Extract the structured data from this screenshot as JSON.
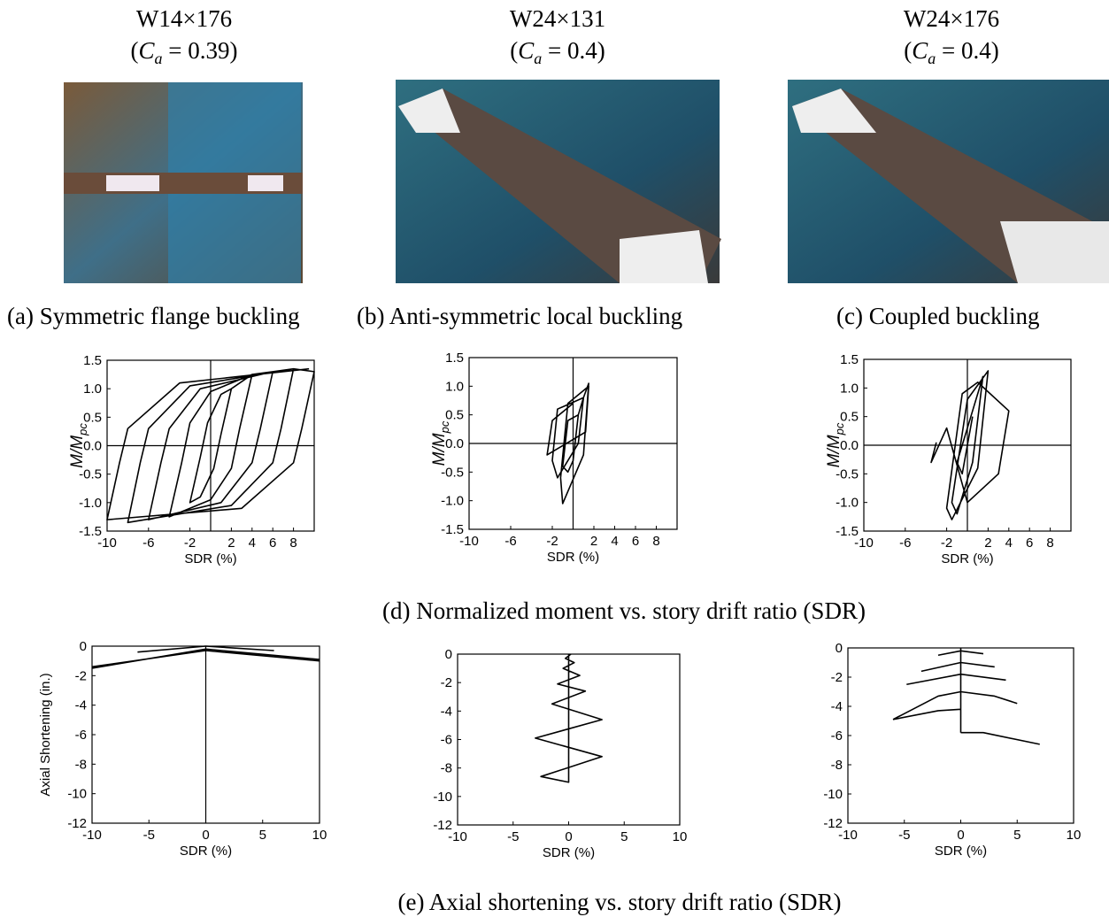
{
  "panels": [
    {
      "section": "W14×176",
      "open": "(",
      "symbol": "C",
      "sub": "a",
      "rest": " = 0.39)",
      "caption": "(a) Symmetric flange buckling"
    },
    {
      "section": "W24×131",
      "open": "(",
      "symbol": "C",
      "sub": "a",
      "rest": " = 0.4)",
      "caption": "(b) Anti-symmetric local buckling"
    },
    {
      "section": "W24×176",
      "open": "(",
      "symbol": "C",
      "sub": "a",
      "rest": " = 0.4)",
      "caption": "(c) Coupled buckling"
    }
  ],
  "captions": {
    "moment": "(d) Normalized moment vs. story drift ratio (SDR)",
    "axial": "(e) Axial shortening vs. story drift ratio (SDR)"
  },
  "chart_data": [
    {
      "type": "line",
      "xlabel": "SDR (%)",
      "ylabel": {
        "main": "M/M",
        "sub": "pc"
      },
      "color": "#000000",
      "xlim": [
        -10,
        10
      ],
      "ylim": [
        -1.5,
        1.5
      ],
      "xticks": [
        -10,
        -6,
        -2,
        2,
        4,
        6,
        8
      ],
      "yticks": [
        1.5,
        {
          "value": 1,
          "label": "1.0"
        },
        0.5,
        {
          "value": 0,
          "label": "0.0"
        },
        -0.5,
        {
          "value": -1,
          "label": "-1.0"
        },
        -1.5
      ],
      "zero_line_x": true,
      "zero_line_y": true,
      "x": [
        2,
        1,
        0.3,
        -1,
        -2,
        -1,
        -0.3,
        1,
        2,
        4,
        2.8,
        2,
        0,
        -4,
        -2.8,
        -2,
        0,
        4,
        6,
        4.8,
        4,
        1,
        -6,
        -4.8,
        -4,
        -1,
        6,
        8,
        6.8,
        6,
        2,
        -8,
        -6.8,
        -6,
        -2,
        8,
        10,
        8.8,
        8,
        3,
        -10,
        -8.8,
        -8,
        -3,
        9.5
      ],
      "values": [
        1,
        0.2,
        -0.4,
        -0.9,
        -1,
        -0.2,
        0.4,
        0.9,
        1,
        1.25,
        0.3,
        -0.4,
        -0.95,
        -1.25,
        -0.3,
        0.4,
        0.95,
        1.25,
        1.3,
        0.3,
        -0.3,
        -1,
        -1.3,
        -0.3,
        0.3,
        1,
        1.3,
        1.35,
        0.3,
        -0.3,
        -1.05,
        -1.35,
        -0.3,
        0.3,
        1.05,
        1.35,
        1.3,
        0.3,
        -0.3,
        -1.1,
        -1.3,
        -0.3,
        0.3,
        1.1,
        1.35
      ]
    },
    {
      "type": "line",
      "xlabel": "SDR (%)",
      "ylabel": {
        "main": "M/M",
        "sub": "pc"
      },
      "color": "#000000",
      "xlim": [
        -10,
        10
      ],
      "ylim": [
        -1.5,
        1.5
      ],
      "xticks": [
        -10,
        -6,
        -2,
        2,
        4,
        6,
        8
      ],
      "yticks": [
        1.5,
        {
          "value": 1,
          "label": "1.0"
        },
        0.5,
        {
          "value": 0,
          "label": "0.0"
        },
        -0.5,
        {
          "value": -1,
          "label": "-1.0"
        },
        -1.5
      ],
      "zero_line_x": true,
      "zero_line_y": true,
      "x": [
        0.5,
        0,
        -0.5,
        -1,
        -0.5,
        0.5,
        1,
        0.5,
        -1.5,
        -2,
        -1.5,
        1,
        1.5,
        1,
        -1,
        -1.2,
        -0.5,
        1.5,
        1.2,
        -2.5,
        -2,
        0
      ],
      "values": [
        0.5,
        -0.3,
        -0.5,
        -0.4,
        0.4,
        0.5,
        0.8,
        0,
        -0.6,
        -0.3,
        0.6,
        0.8,
        1.05,
        -0.2,
        -1.05,
        -0.6,
        0.7,
        1,
        0.2,
        -0.2,
        0.4,
        0.7
      ]
    },
    {
      "type": "line",
      "xlabel": "SDR (%)",
      "ylabel": {
        "main": "M/M",
        "sub": "pc"
      },
      "color": "#000000",
      "xlim": [
        -10,
        10
      ],
      "ylim": [
        -1.5,
        1.5
      ],
      "xticks": [
        -10,
        -6,
        -2,
        2,
        4,
        6,
        8
      ],
      "yticks": [
        1.5,
        {
          "value": 1,
          "label": "1.0"
        },
        0.5,
        {
          "value": 0,
          "label": "0.0"
        },
        -0.5,
        {
          "value": -1,
          "label": "-1.0"
        },
        -1.5
      ],
      "zero_line_x": true,
      "zero_line_y": true,
      "x": [
        0.5,
        -0.5,
        -1,
        0.5,
        1.5,
        0.5,
        -1,
        -1.5,
        0,
        2,
        1,
        -1.5,
        -2,
        -0.5,
        1,
        4,
        3,
        0,
        -2,
        -3.5,
        -3
      ],
      "values": [
        0.5,
        -0.5,
        -0.3,
        0.6,
        1.2,
        -0.3,
        -1.2,
        -1,
        0.8,
        1.3,
        -0.4,
        -1.3,
        -1.1,
        0.9,
        1.1,
        0.6,
        -0.5,
        -1,
        0.3,
        -0.3,
        0.05
      ]
    },
    {
      "type": "line",
      "xlabel": "SDR (%)",
      "ylabel": "Axial Shortening (in.)",
      "color": "#000000",
      "xlim": [
        -10,
        10
      ],
      "ylim": [
        -12,
        0
      ],
      "xticks": [
        -10,
        -5,
        0,
        5,
        10
      ],
      "yticks": [
        0,
        -2,
        -4,
        -6,
        -8,
        -10,
        -12
      ],
      "zero_line_x": true,
      "zero_line_y": false,
      "x": [
        -10,
        0,
        10,
        null,
        -10,
        0,
        10,
        null,
        -6,
        0,
        6
      ],
      "values": [
        -1.4,
        -0.3,
        -1,
        null,
        -1.5,
        -0.2,
        -0.9,
        null,
        -0.4,
        0,
        -0.3
      ]
    },
    {
      "type": "line",
      "xlabel": "SDR (%)",
      "color": "#000000",
      "xlim": [
        -10,
        10
      ],
      "ylim": [
        -12,
        0
      ],
      "xticks": [
        -10,
        -5,
        0,
        5,
        10
      ],
      "yticks": [
        0,
        -2,
        -4,
        -6,
        -8,
        -10,
        -12
      ],
      "zero_line_x": false,
      "zero_line_y": false,
      "x": [
        0,
        0,
        -2.5,
        3,
        -3,
        3,
        -1.5,
        1.5,
        -1,
        1,
        -0.5,
        0.5,
        -0.3,
        0.2
      ],
      "values": [
        0,
        -9,
        -8.6,
        -7.2,
        -5.9,
        -4.6,
        -3.5,
        -2.6,
        -2.1,
        -1.5,
        -1,
        -0.6,
        -0.3,
        0
      ]
    },
    {
      "type": "line",
      "xlabel": "SDR (%)",
      "color": "#000000",
      "xlim": [
        -10,
        10
      ],
      "ylim": [
        -12,
        0
      ],
      "xticks": [
        -10,
        -5,
        0,
        5,
        10
      ],
      "yticks": [
        0,
        -2,
        -4,
        -6,
        -8,
        -10,
        -12
      ],
      "zero_line_x": false,
      "zero_line_y": false,
      "x": [
        0,
        0,
        null,
        -2,
        0,
        2,
        null,
        -3.5,
        0,
        3,
        null,
        -4.8,
        0,
        4,
        null,
        -6,
        -2,
        0,
        3,
        5,
        null,
        -6,
        -2,
        0,
        null,
        0,
        2,
        7
      ],
      "values": [
        0,
        -5.8,
        null,
        -0.5,
        -0.2,
        -0.4,
        null,
        -1.6,
        -1,
        -1.3,
        null,
        -2.5,
        -1.8,
        -2.2,
        null,
        -4.9,
        -3.3,
        -3,
        -3.3,
        -3.8,
        null,
        -4.9,
        -4.3,
        -4.2,
        null,
        -5.8,
        -5.8,
        -6.6
      ]
    }
  ]
}
